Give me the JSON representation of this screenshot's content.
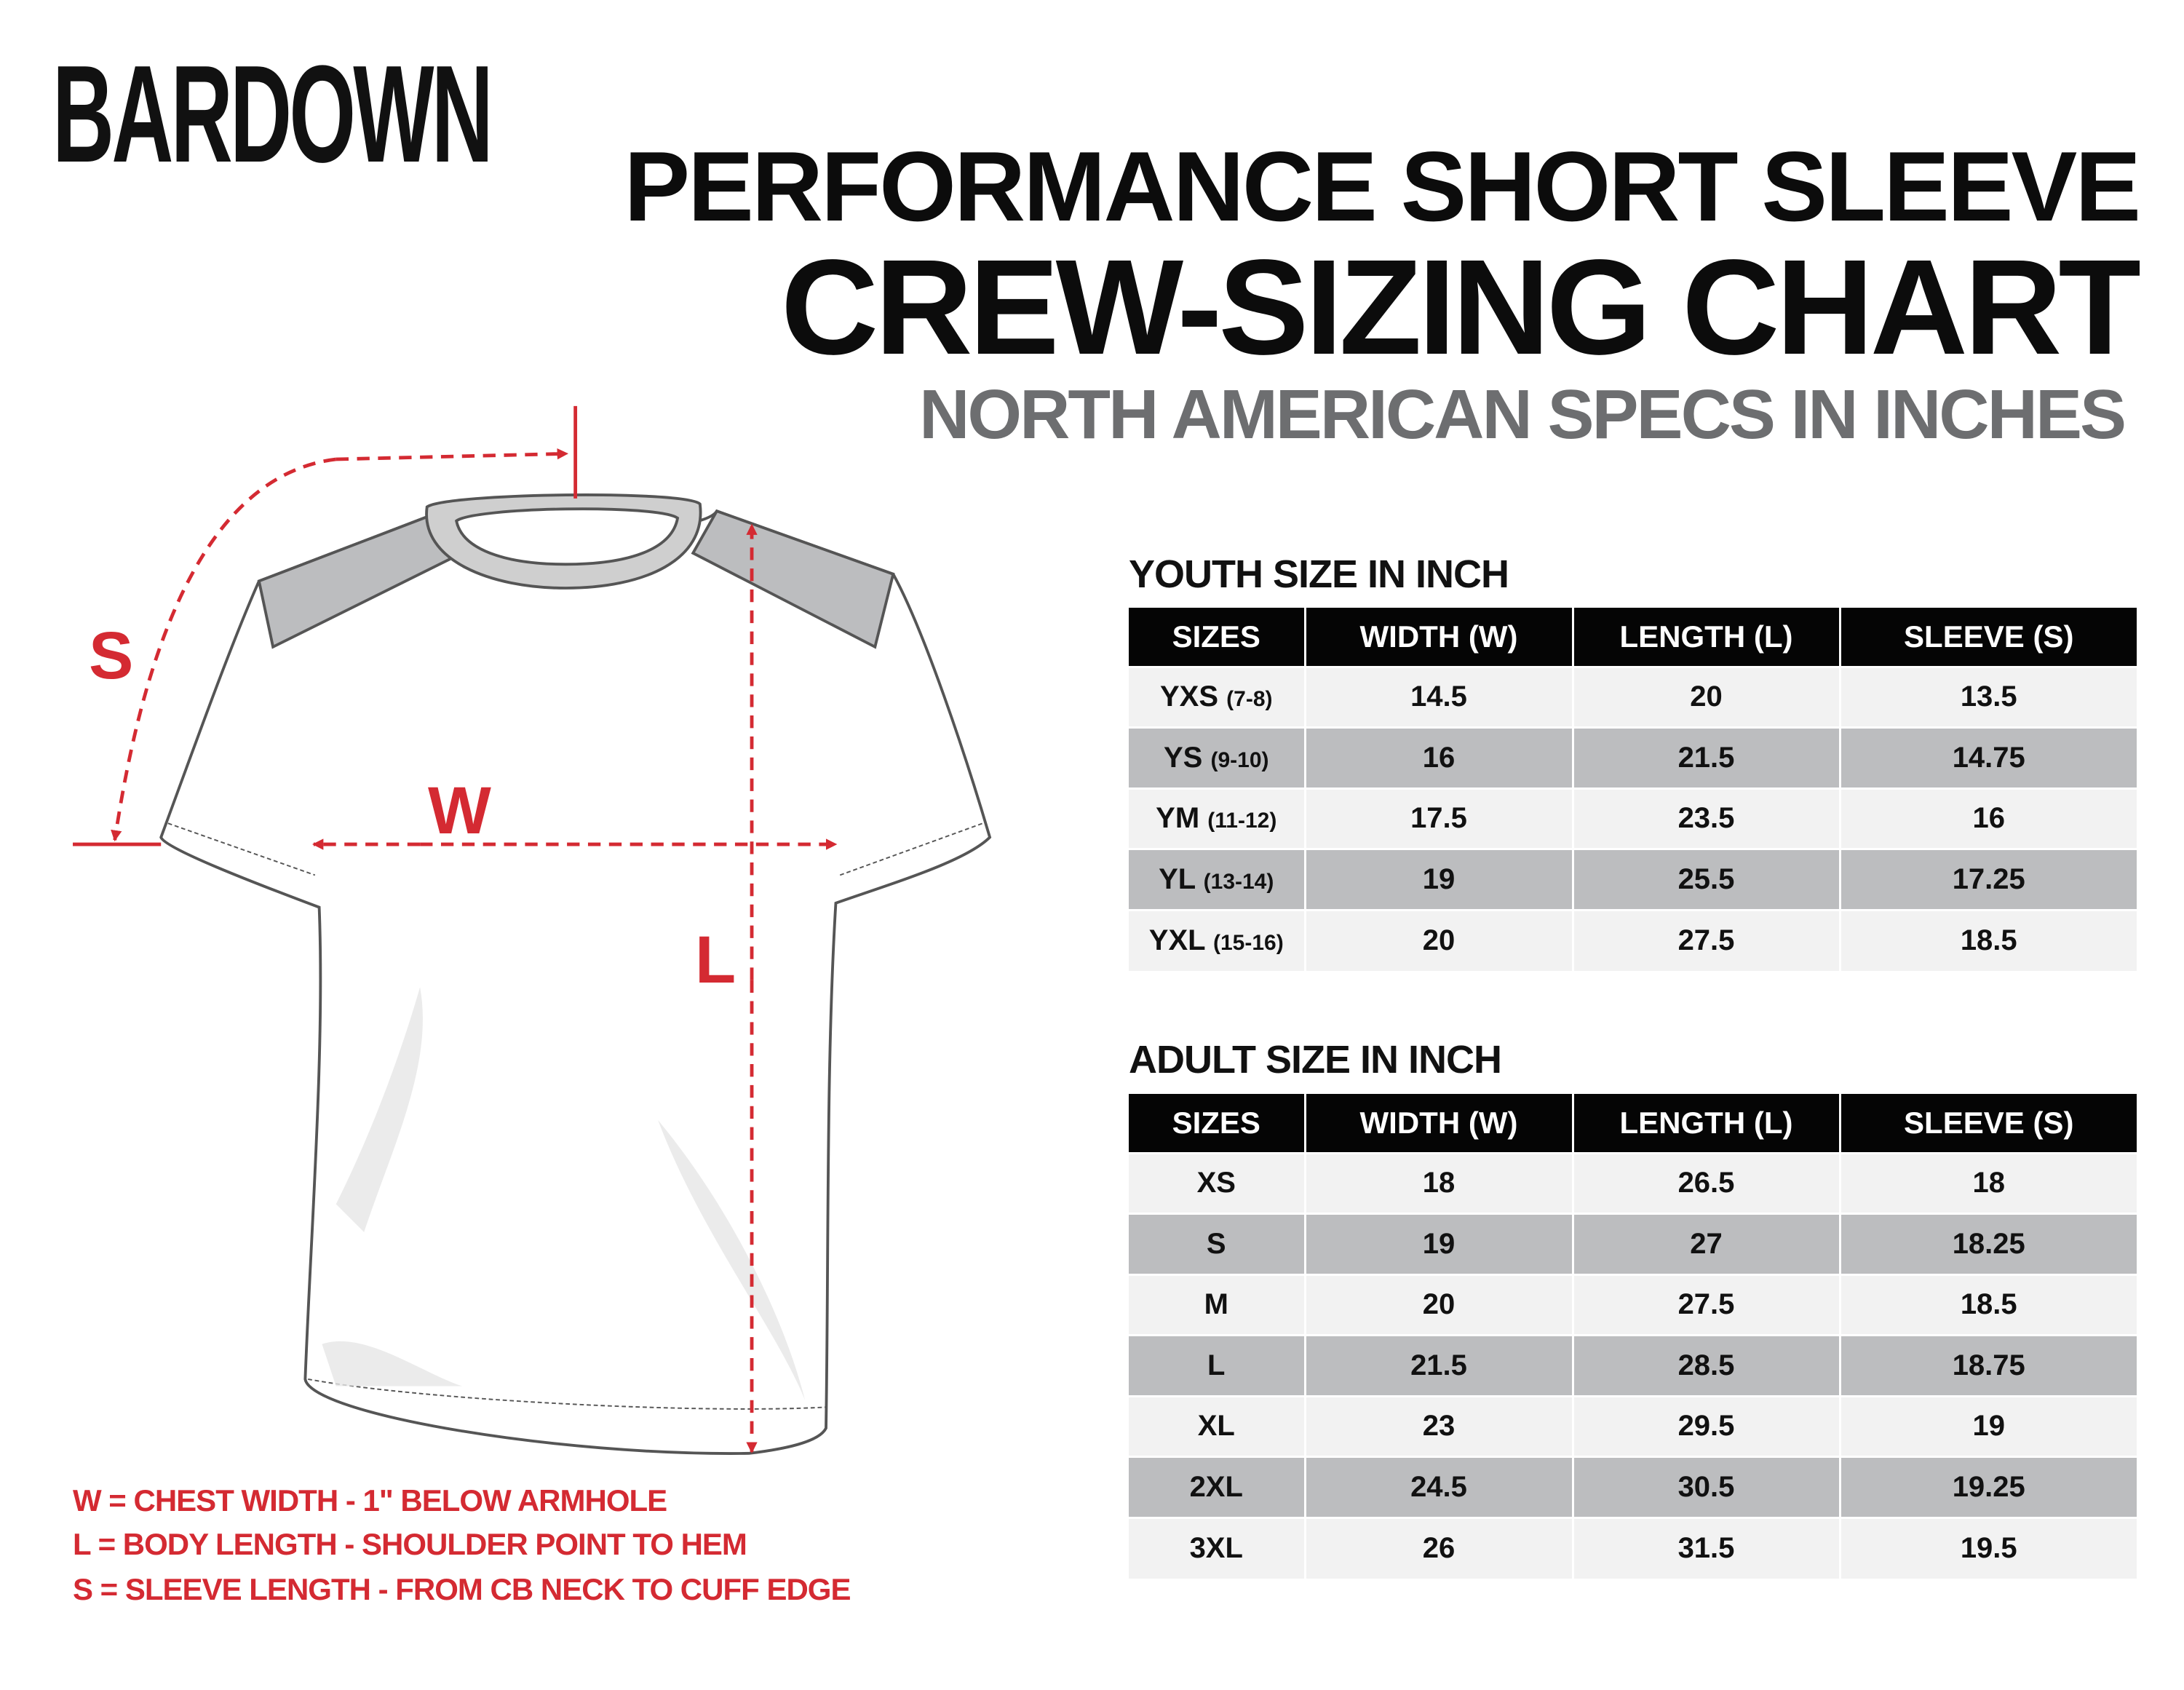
{
  "logo": "BARDOWN",
  "title": {
    "line1": "PERFORMANCE SHORT SLEEVE",
    "line2": "CREW-SIZING CHART",
    "line3": "NORTH AMERICAN SPECS IN INCHES"
  },
  "diagram_labels": {
    "s": "S",
    "w": "W",
    "l": "L"
  },
  "colors": {
    "accent": "#d42a32",
    "header_bg": "#050505",
    "row_light": "#f2f2f2",
    "row_dark": "#bcbdbf",
    "subtitle": "#6d6e70"
  },
  "youth": {
    "heading": "YOUTH SIZE IN INCH",
    "columns": [
      "SIZES",
      "WIDTH (W)",
      "LENGTH (L)",
      "SLEEVE (S)"
    ],
    "rows": [
      {
        "size": "YXS",
        "age": "(7-8)",
        "w": "14.5",
        "l": "20",
        "s": "13.5"
      },
      {
        "size": "YS",
        "age": "(9-10)",
        "w": "16",
        "l": "21.5",
        "s": "14.75"
      },
      {
        "size": "YM",
        "age": "(11-12)",
        "w": "17.5",
        "l": "23.5",
        "s": "16"
      },
      {
        "size": "YL",
        "age": "(13-14)",
        "w": "19",
        "l": "25.5",
        "s": "17.25"
      },
      {
        "size": "YXL",
        "age": "(15-16)",
        "w": "20",
        "l": "27.5",
        "s": "18.5"
      }
    ]
  },
  "adult": {
    "heading": "ADULT SIZE IN INCH",
    "columns": [
      "SIZES",
      "WIDTH (W)",
      "LENGTH (L)",
      "SLEEVE (S)"
    ],
    "rows": [
      {
        "size": "XS",
        "w": "18",
        "l": "26.5",
        "s": "18"
      },
      {
        "size": "S",
        "w": "19",
        "l": "27",
        "s": "18.25"
      },
      {
        "size": "M",
        "w": "20",
        "l": "27.5",
        "s": "18.5"
      },
      {
        "size": "L",
        "w": "21.5",
        "l": "28.5",
        "s": "18.75"
      },
      {
        "size": "XL",
        "w": "23",
        "l": "29.5",
        "s": "19"
      },
      {
        "size": "2XL",
        "w": "24.5",
        "l": "30.5",
        "s": "19.25"
      },
      {
        "size": "3XL",
        "w": "26",
        "l": "31.5",
        "s": "19.5"
      }
    ]
  },
  "legend": [
    "W = CHEST WIDTH - 1\" BELOW ARMHOLE",
    "L = BODY LENGTH - SHOULDER POINT TO HEM",
    "S = SLEEVE LENGTH - FROM CB NECK TO CUFF EDGE"
  ]
}
